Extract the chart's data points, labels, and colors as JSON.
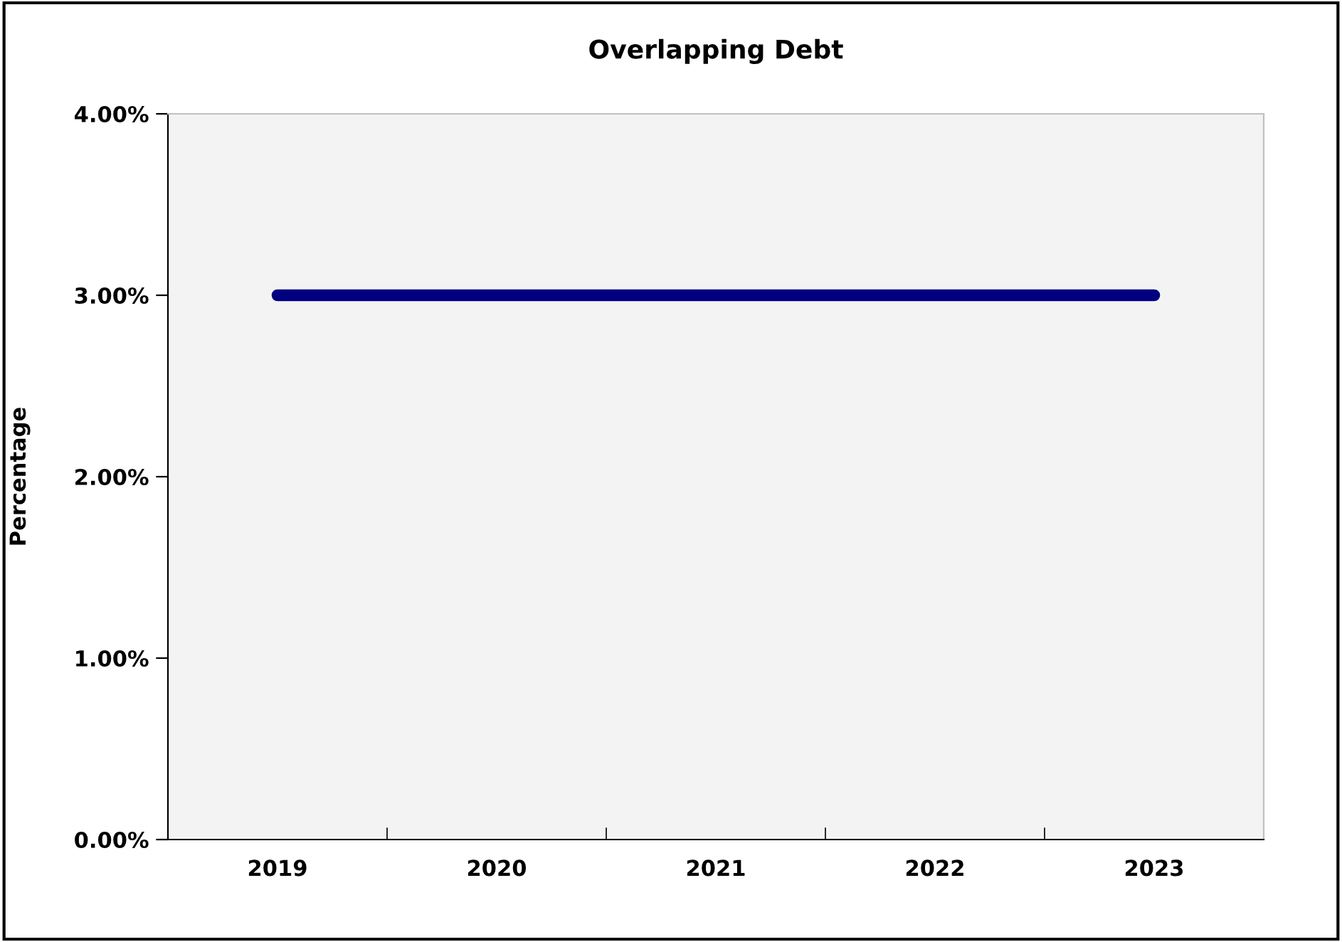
{
  "chart_data": {
    "type": "line",
    "title": "Overlapping Debt",
    "ylabel": "Percentage",
    "categories": [
      "2019",
      "2020",
      "2021",
      "2022",
      "2023"
    ],
    "series": [
      {
        "color": "#000080",
        "values": [
          3,
          3,
          3,
          3,
          3
        ]
      }
    ],
    "ylim": [
      0,
      4
    ],
    "yticks": [
      {
        "value": 0,
        "label": "0.00%"
      },
      {
        "value": 1,
        "label": "1.00%"
      },
      {
        "value": 2,
        "label": "2.00%"
      },
      {
        "value": 3,
        "label": "3.00%"
      },
      {
        "value": 4,
        "label": "4.00%"
      }
    ],
    "grid": false,
    "legend": false,
    "marker": "none",
    "line_style": "solid"
  }
}
